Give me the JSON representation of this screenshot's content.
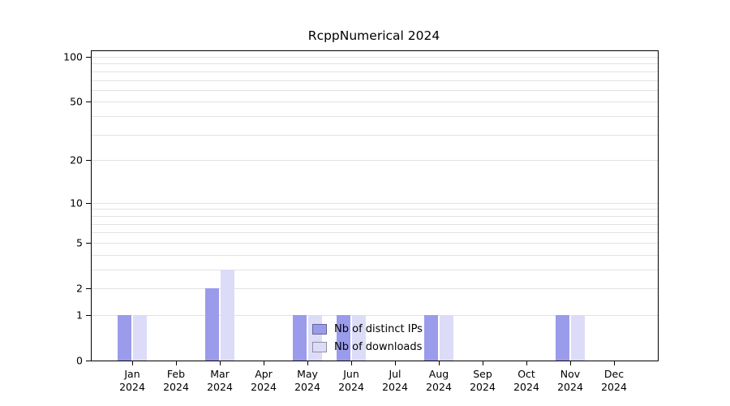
{
  "chart_data": {
    "type": "bar",
    "title": "RcppNumerical 2024",
    "xlabel": "",
    "ylabel": "",
    "categories": [
      "Jan",
      "Feb",
      "Mar",
      "Apr",
      "May",
      "Jun",
      "Jul",
      "Aug",
      "Sep",
      "Oct",
      "Nov",
      "Dec"
    ],
    "year_label": "2024",
    "series": [
      {
        "name": "Nb of distinct IPs",
        "color": "#9b9bec",
        "values": [
          1,
          0,
          2,
          0,
          1,
          1,
          0,
          1,
          0,
          0,
          1,
          0
        ]
      },
      {
        "name": "Nb of downloads",
        "color": "#dcdcf8",
        "values": [
          1,
          0,
          3,
          0,
          1,
          1,
          0,
          1,
          0,
          0,
          1,
          0
        ]
      }
    ],
    "y_ticks": [
      0,
      1,
      2,
      5,
      10,
      20,
      50,
      100
    ],
    "y_minor_gridlines": [
      1,
      2,
      3,
      4,
      5,
      6,
      7,
      8,
      9,
      10,
      20,
      30,
      40,
      50,
      60,
      70,
      80,
      90,
      100
    ],
    "scale": "log1p",
    "ylim": [
      0,
      100
    ],
    "grid": true,
    "legend_position": "center-bottom"
  },
  "colors": {
    "background": "#ffffff",
    "axis": "#000000",
    "grid": "#e2e2e2",
    "text": "#000000",
    "bar_distinct_ips": "#9b9bec",
    "bar_downloads": "#dcdcf8"
  }
}
